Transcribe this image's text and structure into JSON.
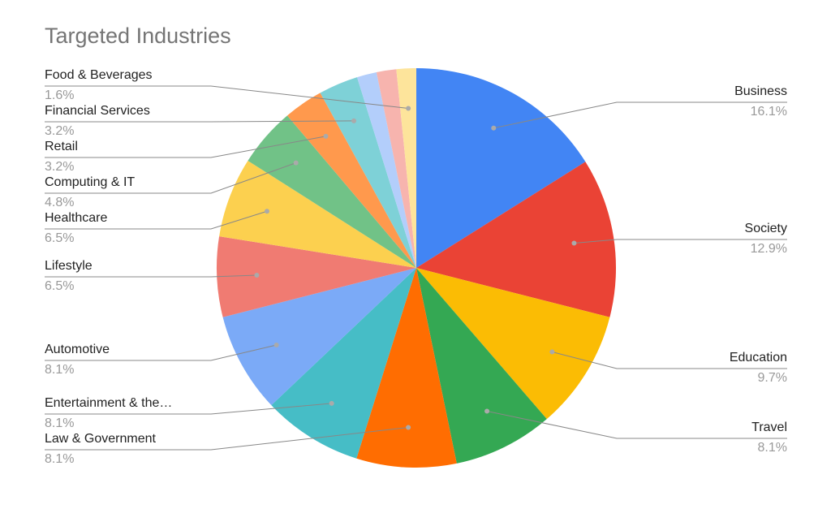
{
  "chart_data": {
    "type": "pie",
    "title": "Targeted Industries",
    "categories": [
      "Business",
      "Society",
      "Education",
      "Travel",
      "Law & Government",
      "Entertainment & the…",
      "Automotive",
      "Lifestyle",
      "Healthcare",
      "Computing & IT",
      "Retail",
      "Financial Services",
      null,
      null,
      "Food & Beverages"
    ],
    "values": [
      16.1,
      12.9,
      9.7,
      8.1,
      8.1,
      8.1,
      8.1,
      6.5,
      6.5,
      4.8,
      3.2,
      3.2,
      1.6,
      1.6,
      1.6
    ],
    "value_labels": [
      "16.1%",
      "12.9%",
      "9.7%",
      "8.1%",
      "8.1%",
      "8.1%",
      "8.1%",
      "6.5%",
      "6.5%",
      "4.8%",
      "3.2%",
      "3.2%",
      null,
      null,
      "1.6%"
    ],
    "colors": [
      "#4285f4",
      "#ea4335",
      "#fbbc04",
      "#34a853",
      "#ff6d01",
      "#46bdc6",
      "#7baaf7",
      "#f07b72",
      "#fcd04f",
      "#71c287",
      "#ff994d",
      "#7ed1d7",
      "#b3cefb",
      "#f7b4ae",
      "#fde49b"
    ]
  }
}
